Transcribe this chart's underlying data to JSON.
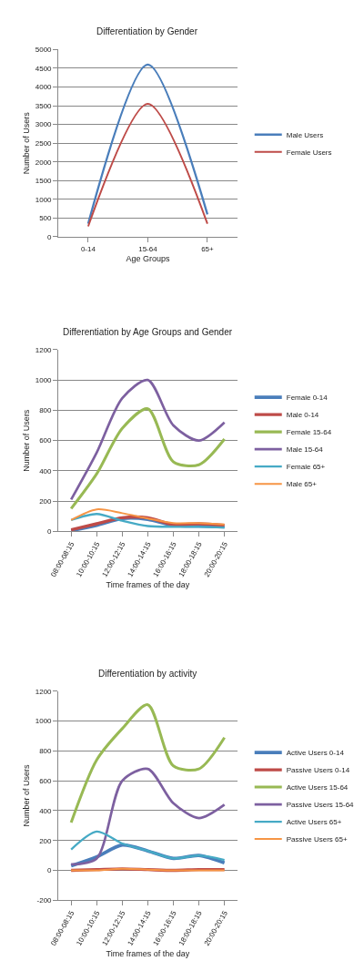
{
  "chart_data": [
    {
      "type": "line",
      "title": "Differentiation by Gender",
      "xlabel": "Age Groups",
      "ylabel": "Number of Users",
      "categories": [
        "0-14",
        "15-64",
        "65+"
      ],
      "series": [
        {
          "name": "Male Users",
          "color": "#4a7ebb",
          "values": [
            350,
            4600,
            600
          ]
        },
        {
          "name": "Female Users",
          "color": "#be4b48",
          "values": [
            280,
            3550,
            350
          ]
        }
      ],
      "ylim": [
        0,
        5000
      ],
      "yticks": [
        0,
        500,
        1000,
        1500,
        2000,
        2500,
        3000,
        3500,
        4000,
        4500,
        5000
      ],
      "grid": "y",
      "legend": "right",
      "marker": "none",
      "line_style": "solid"
    },
    {
      "type": "line",
      "title": "Differentiation by Age Groups and Gender",
      "xlabel": "Time frames of the day",
      "ylabel": "Number of Users",
      "categories": [
        "08:00-08:15",
        "10:00-10:15",
        "12:00-12:15",
        "14:00-14:15",
        "16:00-16:15",
        "18:00-18:15",
        "20:00-20:15"
      ],
      "series": [
        {
          "name": "Female 0-14",
          "color": "#4a7ebb",
          "values": [
            5,
            40,
            85,
            80,
            40,
            35,
            30
          ]
        },
        {
          "name": "Male 0-14",
          "color": "#be4b48",
          "values": [
            10,
            50,
            90,
            90,
            45,
            50,
            40
          ]
        },
        {
          "name": "Female 15-64",
          "color": "#98b954",
          "values": [
            150,
            380,
            680,
            810,
            460,
            440,
            610
          ]
        },
        {
          "name": "Male 15-64",
          "color": "#7d60a0",
          "values": [
            210,
            520,
            880,
            1000,
            700,
            600,
            720
          ]
        },
        {
          "name": "Female 65+",
          "color": "#46aac5",
          "values": [
            75,
            115,
            70,
            35,
            30,
            30,
            25
          ]
        },
        {
          "name": "Male 65+",
          "color": "#f69545",
          "values": [
            75,
            145,
            120,
            85,
            55,
            55,
            45
          ]
        }
      ],
      "ylim": [
        0,
        1200
      ],
      "yticks": [
        0,
        200,
        400,
        600,
        800,
        1000,
        1200
      ],
      "grid": "y",
      "legend": "right",
      "marker": "none",
      "line_style": "solid"
    },
    {
      "type": "line",
      "title": "Differentiation by activity",
      "xlabel": "Time frames of the day",
      "ylabel": "Number of Users",
      "categories": [
        "08:00-08:15",
        "10:00-10:15",
        "12:00-12:15",
        "14:00-14:15",
        "16:00-16:15",
        "18:00-18:15",
        "20:00-20:15"
      ],
      "series": [
        {
          "name": "Active Users 0-14",
          "color": "#4a7ebb",
          "values": [
            30,
            90,
            170,
            130,
            80,
            100,
            50
          ]
        },
        {
          "name": "Passive Users 0-14",
          "color": "#be4b48",
          "values": [
            0,
            5,
            10,
            5,
            0,
            5,
            5
          ]
        },
        {
          "name": "Active Users 15-64",
          "color": "#98b954",
          "values": [
            320,
            740,
            950,
            1110,
            700,
            680,
            890
          ]
        },
        {
          "name": "Passive Users 15-64",
          "color": "#7d60a0",
          "values": [
            40,
            80,
            600,
            680,
            450,
            350,
            440
          ]
        },
        {
          "name": "Active Users 65+",
          "color": "#46aac5",
          "values": [
            140,
            260,
            180,
            130,
            80,
            100,
            70
          ]
        },
        {
          "name": "Passive Users 65+",
          "color": "#f69545",
          "values": [
            0,
            0,
            10,
            5,
            0,
            0,
            0
          ]
        }
      ],
      "ylim": [
        -200,
        1200
      ],
      "yticks": [
        -200,
        0,
        200,
        400,
        600,
        800,
        1000,
        1200
      ],
      "grid": "y",
      "legend": "right",
      "marker": "none",
      "line_style": "solid"
    }
  ]
}
